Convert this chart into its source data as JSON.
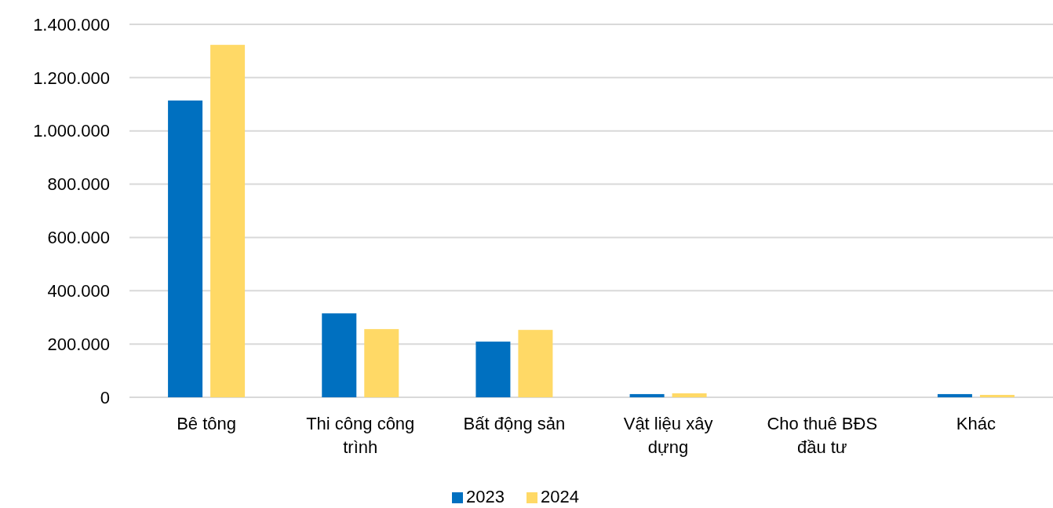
{
  "chart_data": {
    "type": "bar",
    "categories": [
      "Bê tông",
      "Thi công công trình",
      "Bất động sản",
      "Vật liệu xây dựng",
      "Cho thuê BĐS đầu tư",
      "Khác"
    ],
    "series": [
      {
        "name": "2023",
        "color": "#0070c0",
        "values": [
          1114000,
          315000,
          209000,
          12000,
          0,
          12000
        ]
      },
      {
        "name": "2024",
        "color": "#ffd966",
        "values": [
          1323000,
          256000,
          253000,
          15000,
          0,
          9000
        ]
      }
    ],
    "ylim": [
      0,
      1400000
    ],
    "yticks": [
      {
        "value": 0,
        "label": "0"
      },
      {
        "value": 200000,
        "label": "200.000"
      },
      {
        "value": 400000,
        "label": "400.000"
      },
      {
        "value": 600000,
        "label": "600.000"
      },
      {
        "value": 800000,
        "label": "800.000"
      },
      {
        "value": 1000000,
        "label": "1.000.000"
      },
      {
        "value": 1200000,
        "label": "1.200.000"
      },
      {
        "value": 1400000,
        "label": "1.400.000"
      }
    ],
    "grid": "y",
    "legend": "bottom"
  }
}
